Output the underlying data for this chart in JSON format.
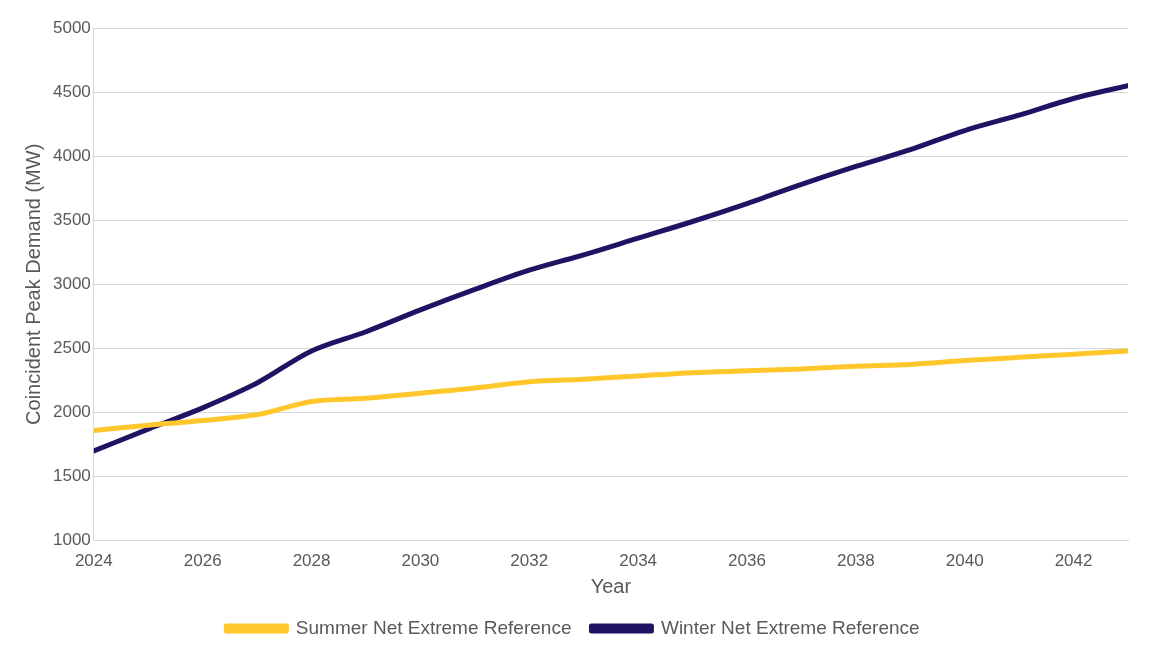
{
  "chart_data": {
    "type": "line",
    "xlabel": "Year",
    "ylabel": "Coincident Peak Demand (MW)",
    "x": [
      2024,
      2025,
      2026,
      2027,
      2028,
      2029,
      2030,
      2031,
      2032,
      2033,
      2034,
      2035,
      2036,
      2037,
      2038,
      2039,
      2040,
      2041,
      2042,
      2043
    ],
    "series": [
      {
        "name": "Summer Net Extreme Reference",
        "color": "#ffc72c",
        "values": [
          1860,
          1900,
          1937,
          1983,
          2085,
          2110,
          2150,
          2190,
          2240,
          2260,
          2285,
          2310,
          2325,
          2340,
          2360,
          2375,
          2405,
          2430,
          2455,
          2480
        ]
      },
      {
        "name": "Winter Net Extreme Reference",
        "color": "#1f1464",
        "values": [
          1700,
          1870,
          2036,
          2230,
          2480,
          2630,
          2800,
          2960,
          3110,
          3230,
          3360,
          3490,
          3630,
          3780,
          3920,
          4050,
          4200,
          4320,
          4450,
          4550
        ]
      }
    ],
    "xlim": [
      2024,
      2043
    ],
    "xticks": [
      2024,
      2026,
      2028,
      2030,
      2032,
      2034,
      2036,
      2038,
      2040,
      2042
    ],
    "ylim": [
      1000,
      5000
    ],
    "yticks": [
      1000,
      1500,
      2000,
      2500,
      3000,
      3500,
      4000,
      4500,
      5000
    ],
    "grid": "y",
    "legend": "bottom",
    "marker": "none",
    "line_style": "solid"
  }
}
